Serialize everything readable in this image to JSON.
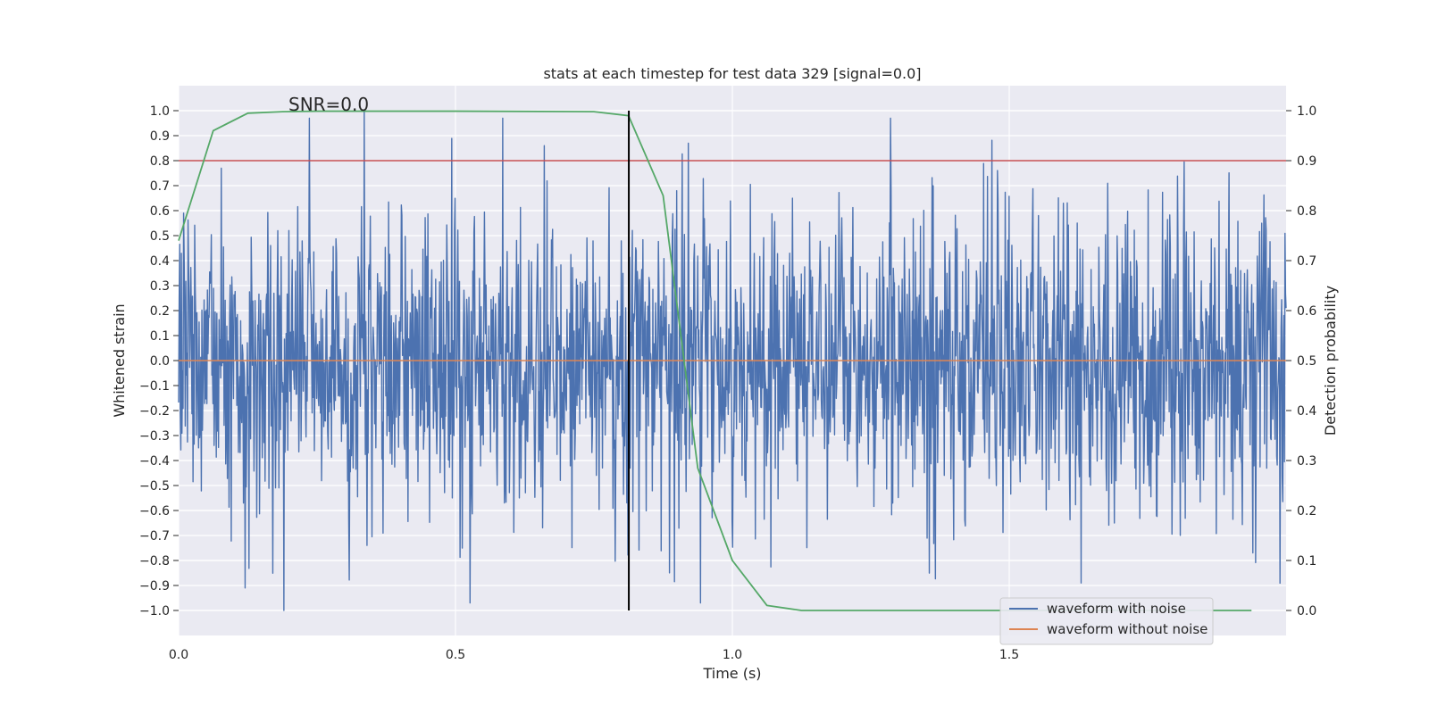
{
  "chart_data": {
    "type": "line",
    "title": "stats at each timestep for test data 329 [signal=0.0]",
    "annotation": "SNR=0.0",
    "xlabel": "Time (s)",
    "ylabel_left": "Whitened strain",
    "ylabel_right": "Detection probability",
    "xlim": [
      0.0,
      2.0
    ],
    "ylim_left": [
      -1.1,
      1.1
    ],
    "ylim_right": [
      -0.05,
      1.05
    ],
    "x_ticks": [
      0.0,
      0.5,
      1.0,
      1.5
    ],
    "x_tick_labels": [
      "0.0",
      "0.5",
      "1.0",
      "1.5"
    ],
    "y_left_ticks": [
      1.0,
      0.9,
      0.8,
      0.7,
      0.6,
      0.5,
      0.4,
      0.3,
      0.2,
      0.1,
      0.0,
      -0.1,
      -0.2,
      -0.3,
      -0.4,
      -0.5,
      -0.6,
      -0.7,
      -0.8,
      -0.9,
      -1.0
    ],
    "y_left_tick_labels": [
      "1.0",
      "0.9",
      "0.8",
      "0.7",
      "0.6",
      "0.5",
      "0.4",
      "0.3",
      "0.2",
      "0.1",
      "0.0",
      "−0.1",
      "−0.2",
      "−0.3",
      "−0.4",
      "−0.5",
      "−0.6",
      "−0.7",
      "−0.8",
      "−0.9",
      "−1.0"
    ],
    "y_right_ticks": [
      1.0,
      0.9,
      0.8,
      0.7,
      0.6,
      0.5,
      0.4,
      0.3,
      0.2,
      0.1,
      0.0
    ],
    "y_right_tick_labels": [
      "1.0",
      "0.9",
      "0.8",
      "0.7",
      "0.6",
      "0.5",
      "0.4",
      "0.3",
      "0.2",
      "0.1",
      "0.0"
    ],
    "threshold": {
      "axis": "right",
      "value": 0.9,
      "color": "#c44e52"
    },
    "marker_line": {
      "x": 0.813,
      "y_range": [
        0.0,
        1.0
      ],
      "color": "#000000"
    },
    "series": [
      {
        "name": "waveform with noise",
        "axis": "left",
        "color": "#4c72b0",
        "description_only": "dense random noise, roughly between -1.0 and 1.0",
        "n_points": 2000,
        "amplitude_std": 0.3,
        "peaks": [
          {
            "x": 0.335,
            "y": 1.0
          },
          {
            "x": 0.19,
            "y": -1.0
          },
          {
            "x": 0.12,
            "y": -0.91
          },
          {
            "x": 0.92,
            "y": 0.87
          },
          {
            "x": 0.66,
            "y": 0.86
          },
          {
            "x": 1.63,
            "y": -0.89
          }
        ]
      },
      {
        "name": "waveform without noise",
        "axis": "left",
        "color": "#dd8452",
        "x": [
          0.0,
          2.0
        ],
        "y": [
          0.0,
          0.0
        ]
      },
      {
        "name": "detection probability",
        "axis": "right",
        "color": "#55a868",
        "x": [
          0.0,
          0.0625,
          0.125,
          0.1875,
          0.25,
          0.5,
          0.75,
          0.8125,
          0.875,
          0.9375,
          1.0,
          1.0625,
          1.125,
          1.25,
          1.5,
          1.75,
          1.9375
        ],
        "y": [
          0.74,
          0.96,
          0.995,
          0.998,
          0.999,
          0.999,
          0.998,
          0.99,
          0.83,
          0.285,
          0.1,
          0.01,
          0.0,
          0.0,
          0.0,
          0.0,
          0.0
        ]
      }
    ],
    "legend": {
      "position": "lower-right",
      "entries": [
        {
          "label": "waveform with noise",
          "color": "#4c72b0"
        },
        {
          "label": "waveform without noise",
          "color": "#dd8452"
        }
      ]
    },
    "colors": {
      "plot_background": "#eaeaf2",
      "grid": "#ffffff",
      "text": "#262626"
    }
  }
}
